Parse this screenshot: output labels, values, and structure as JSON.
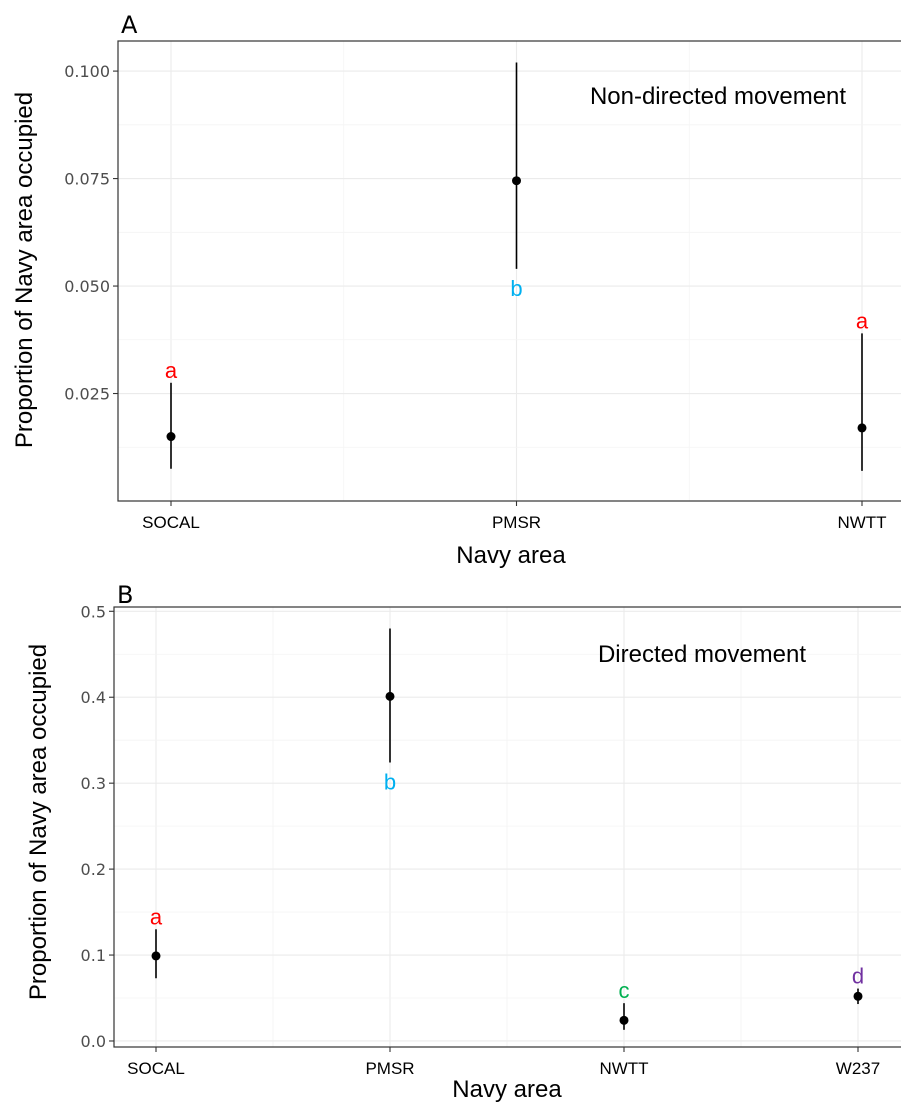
{
  "chart_data": [
    {
      "panel": "A",
      "type": "scatter",
      "annotation": "Non-directed movement",
      "xlabel": "Navy area",
      "ylabel": "Proportion of Navy area occupied",
      "categories": [
        "SOCAL",
        "PMSR",
        "NWTT"
      ],
      "values": [
        0.015,
        0.0745,
        0.017
      ],
      "lower": [
        0.0075,
        0.054,
        0.007
      ],
      "upper": [
        0.0275,
        0.102,
        0.039
      ],
      "labels": [
        "a",
        "b",
        "a"
      ],
      "label_position": [
        "above",
        "below",
        "above"
      ],
      "label_colors": [
        "#ff0000",
        "#00b0f0",
        "#ff0000"
      ],
      "yticks": [
        "0.025",
        "0.050",
        "0.075",
        "0.100"
      ],
      "ylim": [
        0.0,
        0.107
      ],
      "grid": true
    },
    {
      "panel": "B",
      "type": "scatter",
      "annotation": "Directed movement",
      "xlabel": "Navy area",
      "ylabel": "Proportion of Navy area occupied",
      "categories": [
        "SOCAL",
        "PMSR",
        "NWTT",
        "W237"
      ],
      "values": [
        0.099,
        0.401,
        0.024,
        0.052
      ],
      "lower": [
        0.073,
        0.324,
        0.013,
        0.043
      ],
      "upper": [
        0.13,
        0.48,
        0.044,
        0.061
      ],
      "labels": [
        "a",
        "b",
        "c",
        "d"
      ],
      "label_position": [
        "above",
        "below",
        "above",
        "above"
      ],
      "label_colors": [
        "#ff0000",
        "#00b0f0",
        "#00b050",
        "#7030a0"
      ],
      "yticks": [
        "0.0",
        "0.1",
        "0.2",
        "0.3",
        "0.4",
        "0.5"
      ],
      "ylim": [
        -0.007,
        0.505
      ],
      "grid": true
    }
  ]
}
